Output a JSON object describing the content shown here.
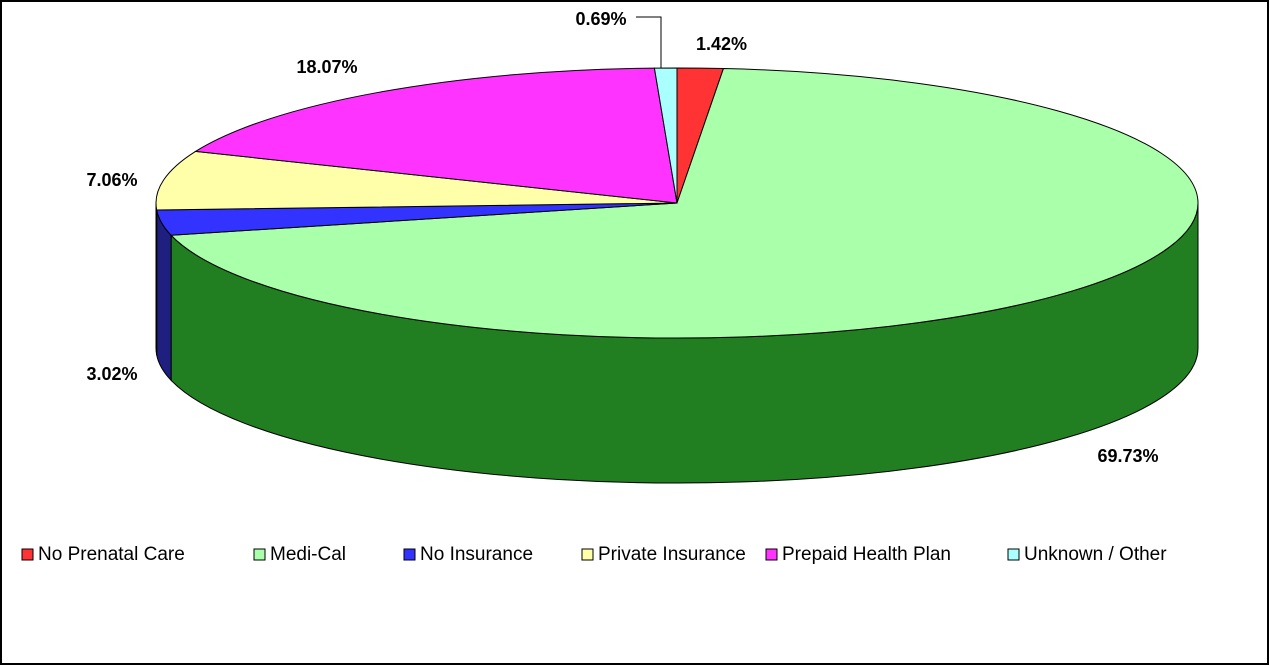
{
  "chart_data": {
    "type": "pie",
    "categories": [
      "No Prenatal Care",
      "Medi-Cal",
      "No Insurance",
      "Private Insurance",
      "Prepaid Health Plan",
      "Unknown / Other"
    ],
    "values": [
      1.42,
      69.73,
      3.02,
      7.06,
      18.07,
      0.69
    ],
    "value_labels": [
      "1.42%",
      "69.73%",
      "3.02%",
      "7.06%",
      "18.07%",
      "0.69%"
    ],
    "colors": [
      "#ff3333",
      "#aaffaa",
      "#3333ff",
      "#ffffaa",
      "#ff33ff",
      "#aaffff"
    ],
    "side_colors": [
      "#7f1919",
      "#217f21",
      "#1f1f7f",
      "#7f7f55",
      "#7f197f",
      "#557f7f"
    ]
  }
}
